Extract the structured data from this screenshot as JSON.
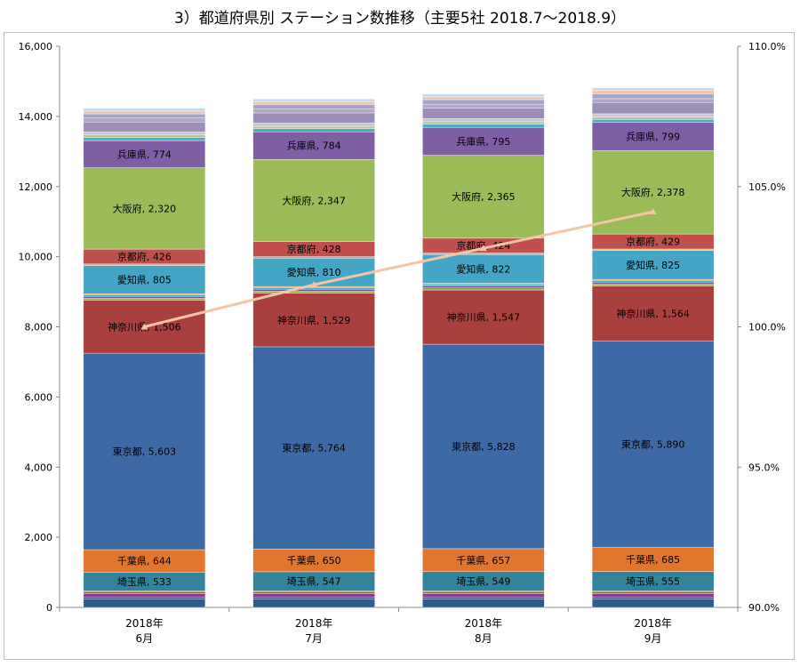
{
  "chart_data": {
    "type": "bar",
    "title": "3）都道府県別 ステーション数推移（主要5社 2018.7～2018.9）",
    "categories": [
      [
        "2018年",
        "6月"
      ],
      [
        "2018年",
        "7月"
      ],
      [
        "2018年",
        "8月"
      ],
      [
        "2018年",
        "9月"
      ]
    ],
    "y_ticks": [
      "0",
      "2,000",
      "4,000",
      "6,000",
      "8,000",
      "10,000",
      "12,000",
      "14,000",
      "16,000"
    ],
    "y2_ticks": [
      "90.0%",
      "95.0%",
      "100.0%",
      "105.0%",
      "110.0%"
    ],
    "ylim": [
      0,
      16000
    ],
    "y2lim": [
      90,
      110
    ],
    "grid": false,
    "series": [
      {
        "values": [
          240,
          240,
          240,
          240
        ],
        "color": "#2E5B8A"
      },
      {
        "values": [
          60,
          60,
          60,
          60
        ],
        "color": "#4A3E7A"
      },
      {
        "values": [
          90,
          90,
          90,
          90
        ],
        "color": "#7D3C8C"
      },
      {
        "values": [
          45,
          45,
          45,
          45
        ],
        "color": "#A0522D"
      },
      {
        "values": [
          35,
          35,
          35,
          35
        ],
        "color": "#6B8E23"
      },
      {
        "values": [
          533,
          547,
          549,
          555
        ],
        "name": "埼玉県",
        "label": "埼玉県, ",
        "color": "#31849B"
      },
      {
        "values": [
          644,
          650,
          657,
          685
        ],
        "name": "千葉県",
        "label": "千葉県, ",
        "color": "#E3762E"
      },
      {
        "values": [
          5603,
          5764,
          5828,
          5890
        ],
        "name": "東京都",
        "label": "東京都, ",
        "color": "#3D6AA5"
      },
      {
        "values": [
          1506,
          1529,
          1547,
          1564
        ],
        "name": "神奈川県",
        "label": "神奈川県, ",
        "color": "#A9403D"
      },
      {
        "values": [
          60,
          60,
          60,
          60
        ],
        "color": "#8FA84A"
      },
      {
        "values": [
          50,
          50,
          50,
          50
        ],
        "color": "#6E4C8F"
      },
      {
        "values": [
          50,
          50,
          50,
          50
        ],
        "color": "#4AACC6"
      },
      {
        "values": [
          30,
          30,
          30,
          30
        ],
        "color": "#E88E3E"
      },
      {
        "values": [
          805,
          810,
          822,
          825
        ],
        "name": "愛知県",
        "label": "愛知県, ",
        "color": "#44A6C4"
      },
      {
        "values": [
          40,
          40,
          40,
          40
        ],
        "color": "#F5A35B"
      },
      {
        "values": [
          426,
          428,
          424,
          429
        ],
        "name": "京都府",
        "label": "京都府, ",
        "color": "#C0504D"
      },
      {
        "values": [
          2320,
          2347,
          2365,
          2378
        ],
        "name": "大阪府",
        "label": "大阪府, ",
        "color": "#9BBB59"
      },
      {
        "values": [
          774,
          784,
          795,
          799
        ],
        "name": "兵庫県",
        "label": "兵庫県, ",
        "color": "#7E5FA3"
      },
      {
        "values": [
          90,
          90,
          90,
          90
        ],
        "color": "#4BACC6"
      },
      {
        "values": [
          70,
          70,
          70,
          70
        ],
        "color": "#B5C98E"
      },
      {
        "values": [
          90,
          90,
          90,
          90
        ],
        "color": "#CCC1DA"
      },
      {
        "values": [
          280,
          290,
          300,
          320
        ],
        "color": "#9C8FB7"
      },
      {
        "values": [
          110,
          110,
          110,
          110
        ],
        "color": "#B2A6C9"
      },
      {
        "values": [
          120,
          130,
          130,
          140
        ],
        "color": "#A6A3C4"
      },
      {
        "values": [
          80,
          80,
          80,
          90
        ],
        "color": "#F2C4A6"
      },
      {
        "values": [
          80,
          80,
          80,
          80
        ],
        "color": "#C6D9F1"
      }
    ],
    "line": {
      "values": [
        100.0,
        101.5,
        102.8,
        104.1
      ],
      "axis": "y2",
      "color": "#F5C6A5"
    }
  }
}
